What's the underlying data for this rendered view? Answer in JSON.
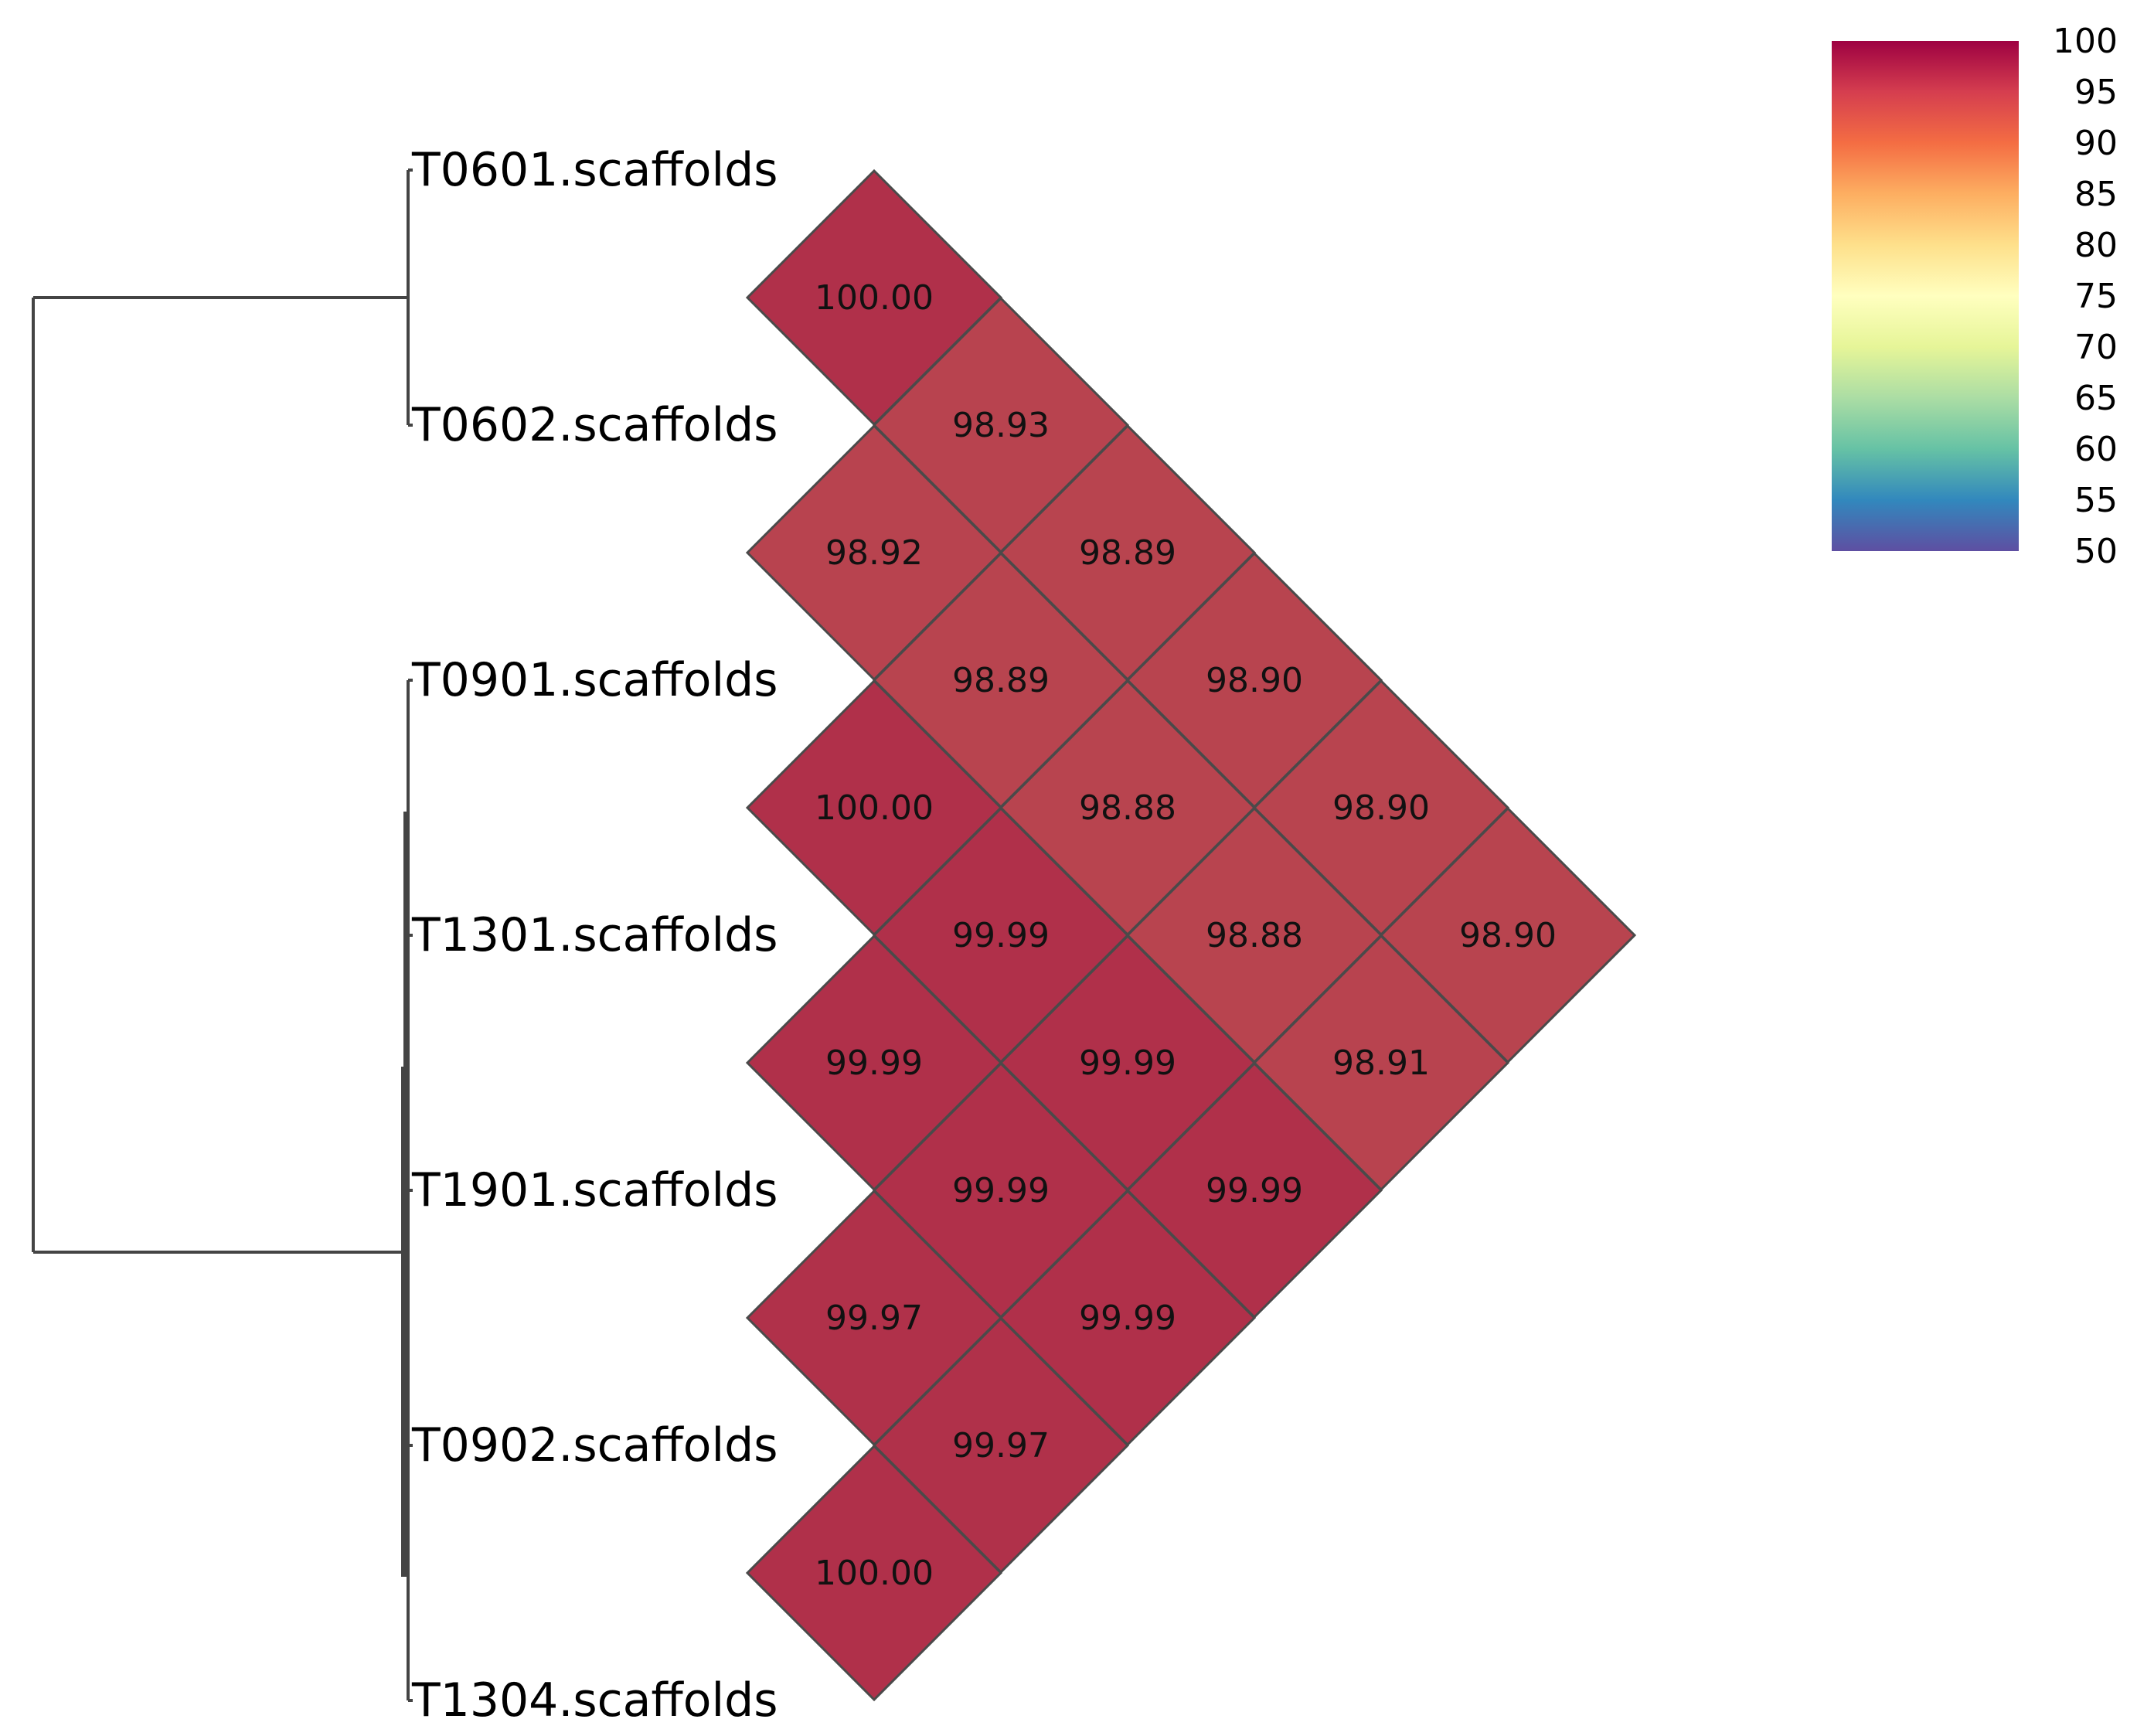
{
  "chart_data": {
    "type": "heatmap",
    "labels": [
      "T0601.scaffolds",
      "T0602.scaffolds",
      "T0901.scaffolds",
      "T1301.scaffolds",
      "T1901.scaffolds",
      "T0902.scaffolds",
      "T1304.scaffolds"
    ],
    "pairs": [
      {
        "a": 0,
        "b": 1,
        "value": "100.00"
      },
      {
        "a": 0,
        "b": 2,
        "value": "98.93"
      },
      {
        "a": 0,
        "b": 3,
        "value": "98.89"
      },
      {
        "a": 0,
        "b": 4,
        "value": "98.90"
      },
      {
        "a": 0,
        "b": 5,
        "value": "98.90"
      },
      {
        "a": 0,
        "b": 6,
        "value": "98.90"
      },
      {
        "a": 1,
        "b": 2,
        "value": "98.92"
      },
      {
        "a": 1,
        "b": 3,
        "value": "98.89"
      },
      {
        "a": 1,
        "b": 4,
        "value": "98.88"
      },
      {
        "a": 1,
        "b": 5,
        "value": "98.88"
      },
      {
        "a": 1,
        "b": 6,
        "value": "98.91"
      },
      {
        "a": 2,
        "b": 3,
        "value": "100.00"
      },
      {
        "a": 2,
        "b": 4,
        "value": "99.99"
      },
      {
        "a": 2,
        "b": 5,
        "value": "99.99"
      },
      {
        "a": 2,
        "b": 6,
        "value": "99.99"
      },
      {
        "a": 3,
        "b": 4,
        "value": "99.99"
      },
      {
        "a": 3,
        "b": 5,
        "value": "99.99"
      },
      {
        "a": 3,
        "b": 6,
        "value": "99.99"
      },
      {
        "a": 4,
        "b": 5,
        "value": "99.97"
      },
      {
        "a": 4,
        "b": 6,
        "value": "99.97"
      },
      {
        "a": 5,
        "b": 6,
        "value": "100.00"
      }
    ],
    "dendrogram": {
      "groups": [
        [
          0,
          1
        ],
        [
          2,
          3,
          4,
          5,
          6
        ]
      ]
    },
    "colorbar": {
      "min": 50,
      "max": 100,
      "ticks": [
        "100",
        "95",
        "90",
        "85",
        "80",
        "75",
        "70",
        "65",
        "60",
        "55",
        "50"
      ],
      "colors": [
        "#5e4fa2",
        "#3288bd",
        "#66c2a5",
        "#abdda4",
        "#e6f598",
        "#ffffbf",
        "#fee08b",
        "#fdae61",
        "#f46d43",
        "#d53e4f",
        "#9e0142"
      ]
    },
    "cell_color_low": "#b8444f",
    "cell_color_high": "#b0304a",
    "cell_border_color": "#4a4a4a",
    "tree_color": "#444444"
  }
}
